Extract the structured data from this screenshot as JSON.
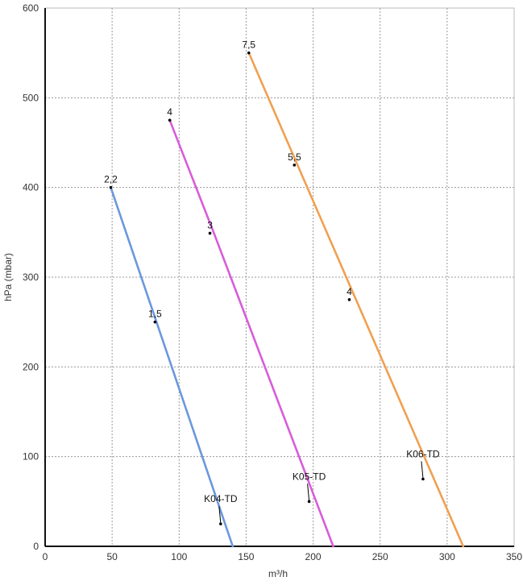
{
  "chart_data": {
    "type": "line",
    "title": "",
    "xlabel": "m³/h",
    "ylabel": "hPa (mbar)",
    "xlim": [
      0,
      350
    ],
    "ylim": [
      0,
      600
    ],
    "x_ticks": [
      "0",
      "50",
      "100",
      "150",
      "200",
      "250",
      "300",
      "350"
    ],
    "y_ticks": [
      "0",
      "100",
      "200",
      "300",
      "400",
      "500",
      "600"
    ],
    "grid": true,
    "series": [
      {
        "name": "K04-TD",
        "color": "#6a98dc",
        "x": [
          49,
          140
        ],
        "y": [
          400,
          0
        ],
        "points": [
          {
            "x": 49,
            "y": 400,
            "label": "2,2"
          },
          {
            "x": 82,
            "y": 250,
            "label": "1,5"
          },
          {
            "x": 131,
            "y": 25,
            "label": ""
          }
        ],
        "tag": {
          "text": "K04-TD",
          "x": 131,
          "y": 25
        }
      },
      {
        "name": "K05-TD",
        "color": "#d85cd8",
        "x": [
          93,
          126,
          215
        ],
        "y": [
          475,
          349,
          0
        ],
        "points": [
          {
            "x": 93,
            "y": 475,
            "label": "4"
          },
          {
            "x": 123,
            "y": 349,
            "label": "3"
          },
          {
            "x": 197,
            "y": 50,
            "label": ""
          }
        ],
        "tag": {
          "text": "K05-TD",
          "x": 197,
          "y": 50
        }
      },
      {
        "name": "K06-TD",
        "color": "#f0a050",
        "x": [
          152,
          312
        ],
        "y": [
          550,
          0
        ],
        "points": [
          {
            "x": 152,
            "y": 550,
            "label": "7,5"
          },
          {
            "x": 186,
            "y": 425,
            "label": "5,5"
          },
          {
            "x": 227,
            "y": 275,
            "label": "4"
          },
          {
            "x": 282,
            "y": 75,
            "label": ""
          }
        ],
        "tag": {
          "text": "K06-TD",
          "x": 282,
          "y": 75
        }
      }
    ]
  }
}
